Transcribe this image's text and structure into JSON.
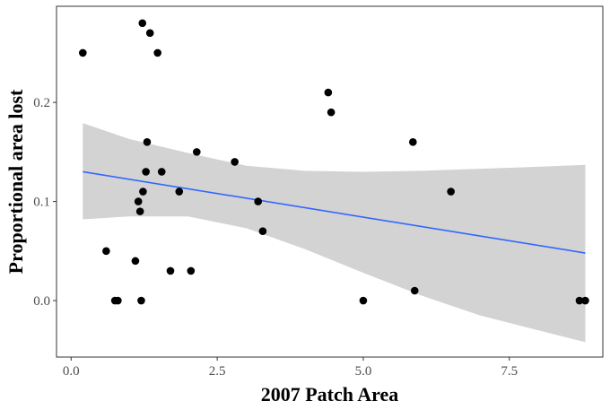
{
  "chart_data": {
    "type": "scatter",
    "title": "",
    "xlabel": "2007 Patch Area",
    "ylabel": "Proportional area lost",
    "xlim": [
      -0.25,
      9.1
    ],
    "ylim": [
      -0.057,
      0.297
    ],
    "x_ticks": [
      0,
      2.5,
      5,
      7.5
    ],
    "x_tick_labels": [
      "0.0",
      "2.5",
      "5.0",
      "7.5"
    ],
    "y_ticks": [
      0,
      0.1,
      0.2
    ],
    "y_tick_labels": [
      "0.0",
      "0.1",
      "0.2"
    ],
    "grid": false,
    "legend": "none",
    "points": [
      {
        "x": 0.2,
        "y": 0.25
      },
      {
        "x": 0.6,
        "y": 0.05
      },
      {
        "x": 0.75,
        "y": 0.0
      },
      {
        "x": 0.8,
        "y": 0.0
      },
      {
        "x": 1.1,
        "y": 0.04
      },
      {
        "x": 1.15,
        "y": 0.1
      },
      {
        "x": 1.18,
        "y": 0.09
      },
      {
        "x": 1.2,
        "y": 0.0
      },
      {
        "x": 1.22,
        "y": 0.28
      },
      {
        "x": 1.23,
        "y": 0.11
      },
      {
        "x": 1.28,
        "y": 0.13
      },
      {
        "x": 1.3,
        "y": 0.16
      },
      {
        "x": 1.35,
        "y": 0.27
      },
      {
        "x": 1.48,
        "y": 0.25
      },
      {
        "x": 1.55,
        "y": 0.13
      },
      {
        "x": 1.7,
        "y": 0.03
      },
      {
        "x": 1.85,
        "y": 0.11
      },
      {
        "x": 2.05,
        "y": 0.03
      },
      {
        "x": 2.15,
        "y": 0.15
      },
      {
        "x": 2.8,
        "y": 0.14
      },
      {
        "x": 3.2,
        "y": 0.1
      },
      {
        "x": 3.28,
        "y": 0.07
      },
      {
        "x": 4.4,
        "y": 0.21
      },
      {
        "x": 4.45,
        "y": 0.19
      },
      {
        "x": 5.0,
        "y": 0.0
      },
      {
        "x": 5.85,
        "y": 0.16
      },
      {
        "x": 5.88,
        "y": 0.01
      },
      {
        "x": 6.5,
        "y": 0.11
      },
      {
        "x": 8.7,
        "y": 0.0
      },
      {
        "x": 8.8,
        "y": 0.0
      }
    ],
    "trend_line": {
      "method": "linear",
      "x": [
        0.2,
        8.8
      ],
      "y": [
        0.13,
        0.048
      ]
    },
    "confidence_band": {
      "x": [
        0.2,
        1.0,
        2.0,
        3.0,
        4.0,
        5.0,
        6.0,
        7.0,
        8.0,
        8.8
      ],
      "lower": [
        0.082,
        0.085,
        0.085,
        0.073,
        0.052,
        0.028,
        0.005,
        -0.015,
        -0.03,
        -0.042
      ],
      "upper": [
        0.179,
        0.163,
        0.149,
        0.136,
        0.131,
        0.13,
        0.131,
        0.133,
        0.135,
        0.137
      ]
    },
    "colors": {
      "points": "#000000",
      "trend_line": "#3366ff",
      "band": "#d3d3d3",
      "axis": "#333333",
      "tick_label": "#4d4d4d"
    }
  }
}
